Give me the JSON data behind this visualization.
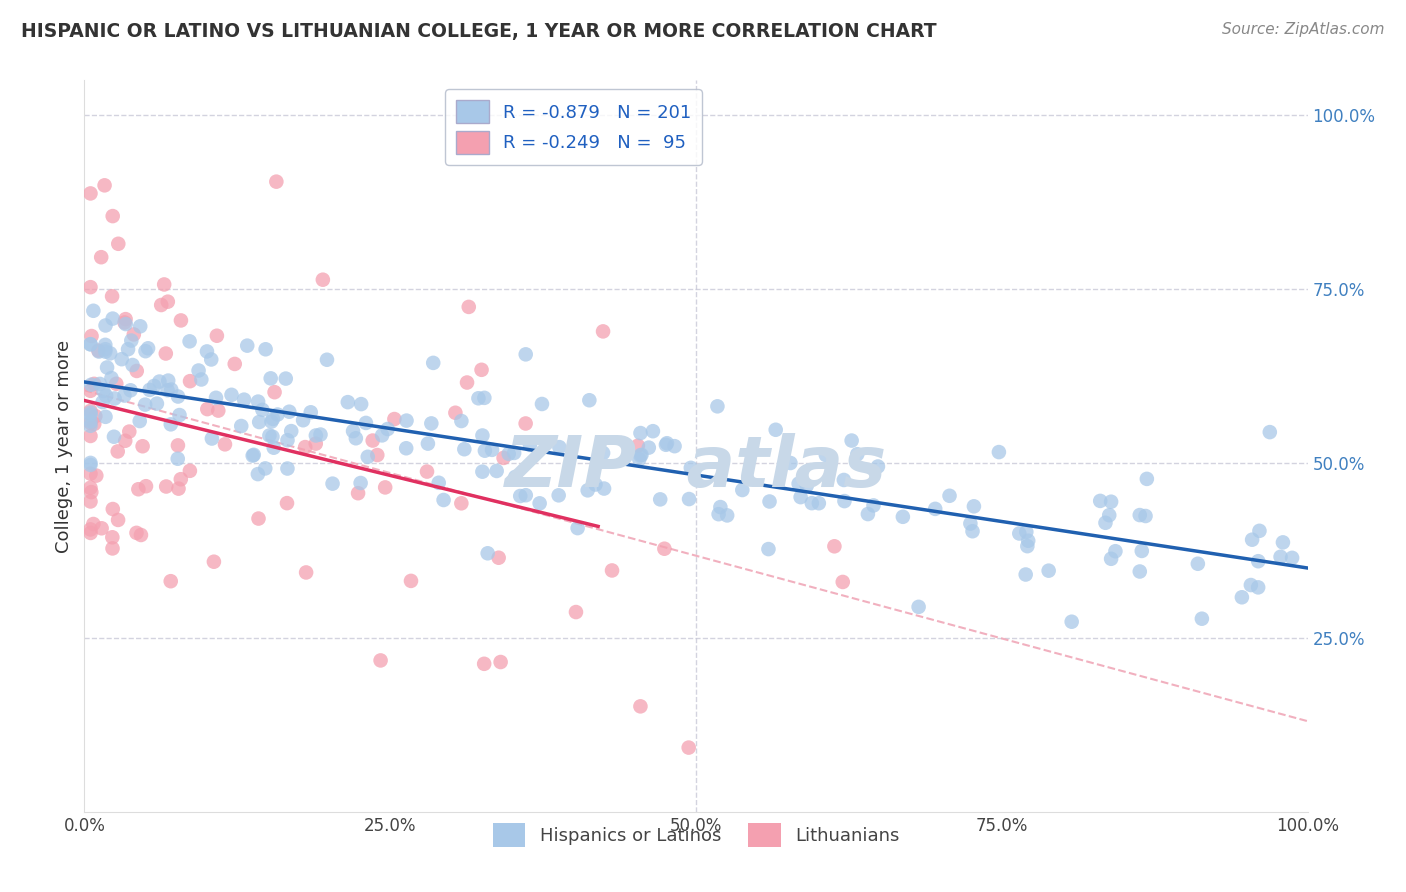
{
  "title": "HISPANIC OR LATINO VS LITHUANIAN COLLEGE, 1 YEAR OR MORE CORRELATION CHART",
  "source": "Source: ZipAtlas.com",
  "ylabel": "College, 1 year or more",
  "legend_labels": [
    "Hispanics or Latinos",
    "Lithuanians"
  ],
  "r_blue": -0.879,
  "n_blue": 201,
  "r_pink": -0.249,
  "n_pink": 95,
  "blue_color": "#a8c8e8",
  "pink_color": "#f4a0b0",
  "blue_line_color": "#2060b0",
  "pink_line_color": "#e03060",
  "dashed_line_color": "#f0a8b8",
  "background_color": "#ffffff",
  "grid_color": "#c8c8d8",
  "title_color": "#333333",
  "source_color": "#888888",
  "tick_label_color": "#4080c0",
  "legend_text_color": "#2060c0",
  "bottom_legend_color": "#444444",
  "watermark_color": "#c8d8e8",
  "xlim": [
    0.0,
    1.0
  ],
  "ylim": [
    0.0,
    1.05
  ],
  "x_ticks": [
    0.0,
    0.25,
    0.5,
    0.75,
    1.0
  ],
  "y_ticks_right": [
    0.25,
    0.5,
    0.75,
    1.0
  ],
  "x_tick_labels": [
    "0.0%",
    "25.0%",
    "50.0%",
    "75.0%",
    "100.0%"
  ],
  "y_tick_labels_right": [
    "25.0%",
    "50.0%",
    "75.0%",
    "100.0%"
  ],
  "blue_line_x0": 0.0,
  "blue_line_y0": 0.615,
  "blue_line_x1": 1.0,
  "blue_line_y1": 0.34,
  "pink_line_x0": 0.0,
  "pink_line_y0": 0.605,
  "pink_line_x1": 0.42,
  "pink_line_y1": 0.44,
  "dashed_line_x0": 0.0,
  "dashed_line_y0": 0.605,
  "dashed_line_x1": 1.0,
  "dashed_line_y1": 0.13,
  "seed": 123
}
